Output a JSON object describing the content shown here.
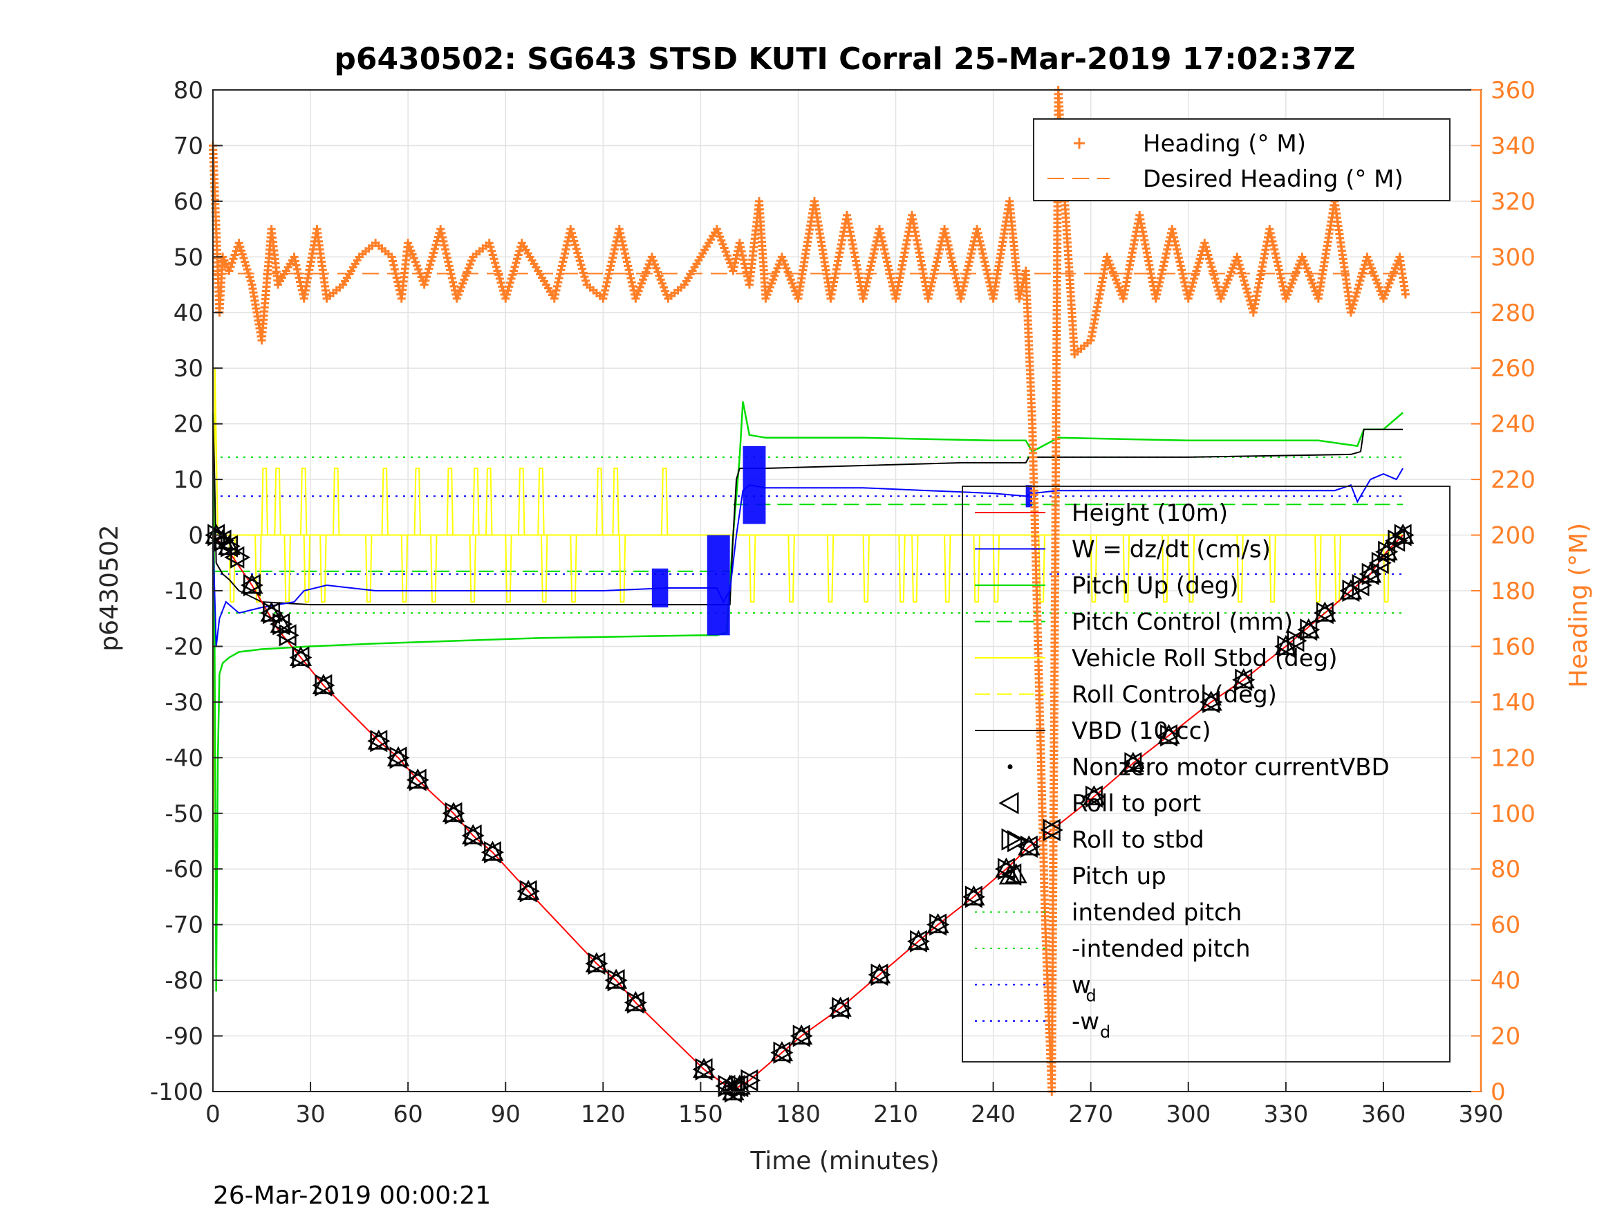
{
  "chart_data": {
    "type": "line",
    "title": "p6430502: SG643 STSD KUTI Corral 25-Mar-2019 17:02:37Z",
    "xlabel": "Time (minutes)",
    "ylabel_left": "p6430502",
    "ylabel_right": "Heading (°M)",
    "footer": "26-Mar-2019 00:00:21",
    "xlim": [
      0,
      390
    ],
    "ylim_left": [
      -100,
      80
    ],
    "ylim_right": [
      0,
      360
    ],
    "x_ticks": [
      0,
      30,
      60,
      90,
      120,
      150,
      180,
      210,
      240,
      270,
      300,
      330,
      360,
      390
    ],
    "y_left_ticks": [
      -100,
      -90,
      -80,
      -70,
      -60,
      -50,
      -40,
      -30,
      -20,
      -10,
      0,
      10,
      20,
      30,
      40,
      50,
      60,
      70,
      80
    ],
    "y_right_ticks": [
      0,
      20,
      40,
      60,
      80,
      100,
      120,
      140,
      160,
      180,
      200,
      220,
      240,
      260,
      280,
      300,
      320,
      340,
      360
    ],
    "grid": true,
    "legend_right_axis": {
      "placement": "top-right",
      "entries": [
        {
          "label": "Heading (° M)",
          "color": "#ff7f27",
          "style": "plus-markers"
        },
        {
          "label": "Desired Heading (° M)",
          "color": "#ff7f27",
          "style": "dashed"
        }
      ]
    },
    "legend_left_axis": {
      "placement": "right",
      "entries": [
        {
          "label": "Height (10m)",
          "color": "#ff0000",
          "style": "solid"
        },
        {
          "label": "W = dz/dt (cm/s)",
          "color": "#0000ff",
          "style": "solid"
        },
        {
          "label": "Pitch Up (deg)",
          "color": "#00dd00",
          "style": "solid"
        },
        {
          "label": "Pitch Control (mm)",
          "color": "#00dd00",
          "style": "dashed"
        },
        {
          "label": "Vehicle Roll Stbd (deg)",
          "color": "#ffff00",
          "style": "solid"
        },
        {
          "label": "Roll Control (deg)",
          "color": "#ffff00",
          "style": "dashed"
        },
        {
          "label": "VBD (10 cc)",
          "color": "#000000",
          "style": "solid"
        },
        {
          "label": "Nonzero motor currentVBD",
          "color": "#000000",
          "style": "dot"
        },
        {
          "label": "Roll to port",
          "color": "#000000",
          "style": "triangle-left"
        },
        {
          "label": "Roll to stbd",
          "color": "#000000",
          "style": "triangle-right"
        },
        {
          "label": "Pitch up",
          "color": "#000000",
          "style": "triangle-up"
        },
        {
          "label": "intended pitch",
          "color": "#00dd00",
          "style": "dotted"
        },
        {
          "label": "-intended pitch",
          "color": "#00dd00",
          "style": "dotted"
        },
        {
          "label": "w",
          "sub": "d",
          "color": "#0000ff",
          "style": "dotted"
        },
        {
          "label": "-w",
          "sub": "d",
          "color": "#0000ff",
          "style": "dotted"
        }
      ]
    },
    "series": [
      {
        "name": "Height (10m)",
        "axis": "left",
        "color": "#ff0000",
        "x": [
          0,
          5,
          12,
          20,
          27,
          34,
          51,
          57,
          63,
          74,
          80,
          86,
          97,
          118,
          124,
          130,
          151,
          158,
          160,
          162,
          165,
          175,
          181,
          193,
          205,
          217,
          223,
          234,
          244,
          251,
          258,
          271,
          283,
          294,
          307,
          317,
          330,
          336,
          342,
          350,
          356,
          361,
          366
        ],
        "y": [
          0,
          -3,
          -9,
          -17,
          -22,
          -27,
          -37,
          -40,
          -44,
          -50,
          -54,
          -57,
          -64,
          -77,
          -80,
          -84,
          -96,
          -99,
          -100,
          -99,
          -98,
          -93,
          -90,
          -85,
          -79,
          -73,
          -70,
          -65,
          -60,
          -56,
          -53,
          -47,
          -41,
          -36,
          -30,
          -26,
          -20,
          -17,
          -14,
          -10,
          -7,
          -3,
          0
        ]
      },
      {
        "name": "Roll to port",
        "axis": "left",
        "color": "#000000",
        "x": [
          1,
          3,
          5,
          7,
          12,
          18,
          21,
          23,
          27,
          34,
          51,
          57,
          63,
          74,
          80,
          86,
          97,
          118,
          124,
          130,
          151,
          158,
          160,
          161,
          162,
          165,
          175,
          181,
          193,
          205,
          217,
          223,
          234,
          244,
          246,
          251,
          258,
          271,
          283,
          294,
          307,
          317,
          330,
          333,
          337,
          342,
          350,
          353,
          356,
          359,
          361,
          364,
          366
        ],
        "y": [
          0,
          -1,
          -2,
          -4,
          -9,
          -14,
          -16,
          -18,
          -22,
          -27,
          -37,
          -40,
          -44,
          -50,
          -54,
          -57,
          -64,
          -77,
          -80,
          -84,
          -96,
          -99,
          -100,
          -99,
          -99,
          -98,
          -93,
          -90,
          -85,
          -79,
          -73,
          -70,
          -65,
          -60,
          -61,
          -56,
          -53,
          -47,
          -41,
          -36,
          -30,
          -26,
          -20,
          -19,
          -17,
          -14,
          -10,
          -9,
          -7,
          -5,
          -3,
          -1,
          0
        ]
      },
      {
        "name": "Roll to stbd",
        "axis": "left",
        "color": "#000000",
        "x": [
          1,
          3,
          5,
          8,
          12,
          18,
          21,
          23,
          27,
          34,
          51,
          57,
          63,
          74,
          80,
          86,
          97,
          118,
          124,
          130,
          151,
          158,
          160,
          162,
          165,
          175,
          181,
          193,
          205,
          217,
          223,
          234,
          244,
          247,
          251,
          258,
          271,
          283,
          294,
          307,
          317,
          330,
          333,
          337,
          342,
          350,
          353,
          356,
          359,
          361,
          364,
          366
        ],
        "y": [
          0,
          -1,
          -2,
          -4,
          -9,
          -14,
          -16,
          -18,
          -22,
          -27,
          -37,
          -40,
          -44,
          -50,
          -54,
          -57,
          -64,
          -77,
          -80,
          -84,
          -96,
          -99,
          -100,
          -99,
          -98,
          -93,
          -90,
          -85,
          -79,
          -73,
          -70,
          -65,
          -60,
          -55,
          -56,
          -53,
          -47,
          -41,
          -36,
          -30,
          -26,
          -20,
          -19,
          -17,
          -14,
          -10,
          -9,
          -7,
          -5,
          -3,
          -1,
          0
        ]
      },
      {
        "name": "Pitch up",
        "axis": "left",
        "color": "#000000",
        "x": [
          1,
          3,
          5,
          12,
          18,
          21,
          27,
          34,
          51,
          57,
          63,
          74,
          80,
          86,
          97,
          118,
          124,
          130,
          151,
          159,
          160,
          162,
          175,
          181,
          193,
          205,
          217,
          223,
          234,
          244,
          247,
          251,
          271,
          283,
          294,
          307,
          317,
          330,
          337,
          342,
          350,
          356,
          361,
          366
        ],
        "y": [
          0,
          -1,
          -2,
          -9,
          -14,
          -16,
          -22,
          -27,
          -37,
          -40,
          -44,
          -50,
          -54,
          -57,
          -64,
          -77,
          -80,
          -84,
          -96,
          -99,
          -100,
          -99,
          -93,
          -90,
          -85,
          -79,
          -73,
          -70,
          -65,
          -60,
          -61,
          -56,
          -47,
          -41,
          -36,
          -30,
          -26,
          -20,
          -17,
          -14,
          -10,
          -7,
          -3,
          0
        ]
      },
      {
        "name": "W = dz/dt (cm/s)",
        "axis": "left",
        "color": "#0000ff",
        "x": [
          0,
          1,
          2,
          4,
          8,
          15,
          25,
          28,
          35,
          50,
          80,
          100,
          120,
          140,
          155,
          157,
          159,
          161,
          163,
          165,
          170,
          180,
          200,
          220,
          240,
          250,
          252,
          260,
          280,
          300,
          330,
          345,
          350,
          352,
          356,
          360,
          364,
          366
        ],
        "y": [
          0,
          -20,
          -15,
          -12,
          -14,
          -13,
          -12,
          -10,
          -9,
          -10,
          -10,
          -10,
          -10,
          -9.5,
          -9.5,
          -12,
          -10,
          0,
          8,
          9,
          8.5,
          8.5,
          8.5,
          8,
          7.5,
          7,
          7.5,
          8,
          8,
          8,
          8,
          8,
          9,
          6,
          10,
          11,
          10,
          12
        ]
      },
      {
        "name": "Pitch Up (deg)",
        "axis": "left",
        "color": "#00dd00",
        "x": [
          0,
          0.5,
          1,
          1.5,
          2,
          3,
          5,
          8,
          15,
          30,
          50,
          100,
          150,
          155,
          158,
          160,
          162,
          163,
          165,
          170,
          200,
          240,
          250,
          252,
          260,
          300,
          340,
          352,
          354,
          360,
          366
        ],
        "y": [
          22,
          -20,
          -82,
          -40,
          -25,
          -23,
          -22,
          -21,
          -20.5,
          -20,
          -19.5,
          -18.5,
          -18,
          -18,
          -17.5,
          0,
          14,
          24,
          18,
          17.5,
          17.5,
          17,
          17,
          15,
          17.5,
          17,
          17,
          16,
          19,
          19,
          22
        ]
      },
      {
        "name": "VBD (10 cc)",
        "axis": "left",
        "color": "#000000",
        "x": [
          0,
          0.5,
          1,
          3,
          5,
          8,
          15,
          30,
          60,
          100,
          155,
          157,
          159,
          160,
          161,
          162,
          170,
          200,
          230,
          250,
          251,
          300,
          350,
          353,
          354,
          366
        ],
        "y": [
          22,
          10,
          -5,
          -7,
          -8,
          -10,
          -12,
          -12.5,
          -12.5,
          -12.5,
          -12.5,
          -12.5,
          -12.5,
          0,
          10,
          12,
          12,
          12.5,
          13,
          13,
          14,
          14,
          14.5,
          15,
          19,
          19
        ]
      },
      {
        "name": "Vehicle Roll Stbd (deg)",
        "axis": "left",
        "color": "#ffff00",
        "spikes_up": [
          15,
          19,
          27,
          37,
          52,
          62,
          72,
          80,
          84,
          94,
          100,
          118,
          123,
          138
        ],
        "spikes_down": [
          5,
          13,
          22,
          28,
          33,
          47,
          58,
          67,
          79,
          90,
          101,
          110,
          125,
          165,
          177,
          189,
          200,
          211,
          215,
          225,
          234,
          240,
          254,
          270,
          280,
          292,
          300,
          315,
          325,
          339,
          345,
          360
        ],
        "baseline_pre": 0,
        "baseline_post": 0,
        "spike_height": 12,
        "spike_depth": -12
      },
      {
        "name": "Heading (° M)",
        "axis": "right",
        "color": "#ff7f27",
        "x": [
          0,
          1,
          2,
          3,
          5,
          8,
          12,
          15,
          18,
          20,
          25,
          28,
          32,
          35,
          40,
          45,
          50,
          55,
          58,
          60,
          65,
          70,
          75,
          80,
          85,
          90,
          95,
          100,
          105,
          110,
          115,
          120,
          125,
          130,
          135,
          140,
          145,
          150,
          155,
          160,
          162,
          165,
          168,
          170,
          175,
          180,
          185,
          190,
          195,
          200,
          205,
          210,
          215,
          220,
          225,
          230,
          235,
          240,
          245,
          248,
          250,
          252,
          254,
          256,
          258,
          260,
          262,
          265,
          270,
          275,
          280,
          285,
          290,
          295,
          300,
          305,
          310,
          315,
          320,
          325,
          330,
          335,
          340,
          345,
          350,
          355,
          360,
          365,
          367
        ],
        "y": [
          340,
          310,
          280,
          300,
          295,
          305,
          290,
          270,
          310,
          290,
          300,
          285,
          310,
          285,
          290,
          300,
          305,
          300,
          285,
          305,
          290,
          310,
          285,
          300,
          305,
          285,
          305,
          295,
          285,
          310,
          290,
          285,
          310,
          285,
          300,
          285,
          290,
          300,
          310,
          295,
          305,
          290,
          320,
          285,
          300,
          285,
          320,
          285,
          315,
          285,
          310,
          285,
          315,
          285,
          310,
          285,
          310,
          285,
          320,
          285,
          295,
          240,
          150,
          60,
          0,
          360,
          320,
          265,
          270,
          300,
          285,
          315,
          285,
          310,
          285,
          305,
          285,
          300,
          280,
          310,
          285,
          300,
          285,
          320,
          280,
          300,
          285,
          300,
          285
        ]
      },
      {
        "name": "Desired Heading (° M)",
        "axis": "right",
        "color": "#ff7f27",
        "x": [
          0,
          367
        ],
        "y": [
          294,
          294
        ]
      }
    ],
    "reference_lines": [
      {
        "name": "intended pitch",
        "axis": "left",
        "y": 14,
        "color": "#00dd00"
      },
      {
        "name": "-intended pitch",
        "axis": "left",
        "y": -14,
        "color": "#00dd00"
      },
      {
        "name": "w_d",
        "axis": "left",
        "y": 7,
        "color": "#0000ff"
      },
      {
        "name": "-w_d",
        "axis": "left",
        "y": -7,
        "color": "#0000ff"
      },
      {
        "name": "Pitch Control (mm) down",
        "axis": "left",
        "y": -6.5,
        "x_range": [
          0,
          160
        ],
        "color": "#00dd00"
      },
      {
        "name": "Pitch Control (mm) up",
        "axis": "left",
        "y": 5.5,
        "x_range": [
          160,
          366
        ],
        "color": "#00dd00"
      }
    ]
  }
}
